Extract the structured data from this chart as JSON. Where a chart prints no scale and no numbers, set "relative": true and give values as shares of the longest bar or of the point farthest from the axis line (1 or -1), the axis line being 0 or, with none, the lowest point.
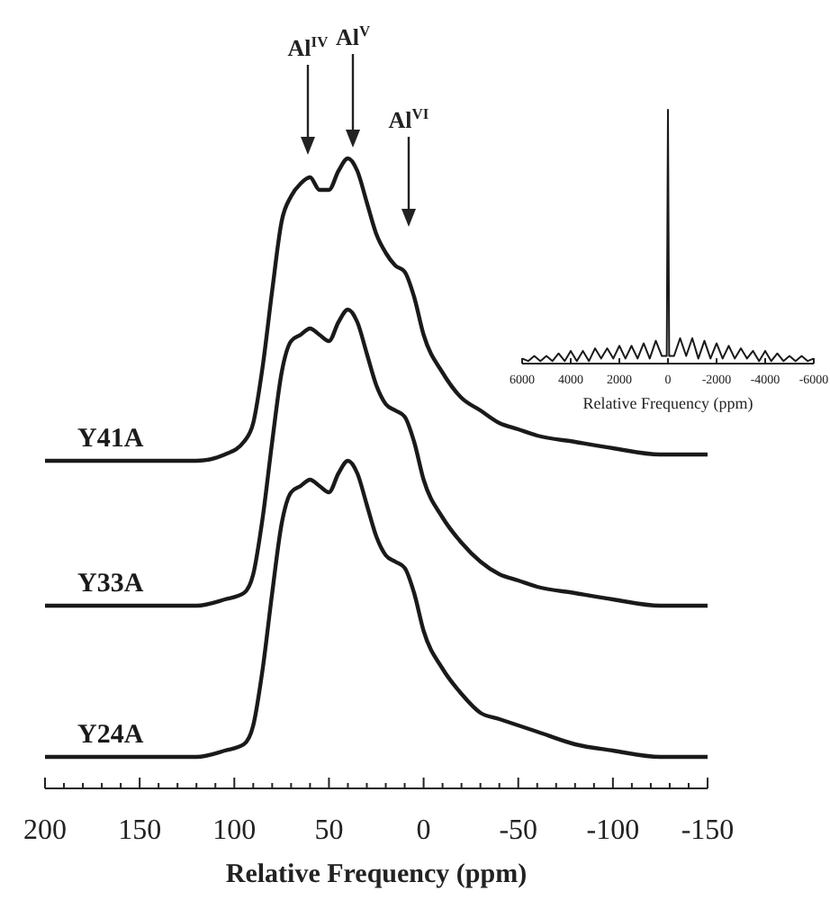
{
  "chart_data": [
    {
      "type": "line",
      "relative": true,
      "xlabel": "Relative Frequency (ppm)",
      "x": [
        200,
        150,
        120,
        105,
        95,
        90,
        85,
        80,
        75,
        70,
        65,
        60,
        55,
        50,
        45,
        40,
        35,
        30,
        25,
        20,
        15,
        10,
        5,
        0,
        -10,
        -20,
        -30,
        -40,
        -50,
        -60,
        -80,
        -100,
        -125,
        -150
      ],
      "xlim": [
        200,
        -150
      ],
      "xticks": [
        200,
        {
          "value": 190,
          "label": null
        },
        {
          "value": 180,
          "label": null
        },
        {
          "value": 170,
          "label": null
        },
        {
          "value": 160,
          "label": null
        },
        150,
        {
          "value": 140,
          "label": null
        },
        {
          "value": 130,
          "label": null
        },
        {
          "value": 120,
          "label": null
        },
        {
          "value": 110,
          "label": null
        },
        100,
        {
          "value": 90,
          "label": null
        },
        {
          "value": 80,
          "label": null
        },
        {
          "value": 70,
          "label": null
        },
        {
          "value": 60,
          "label": null
        },
        50,
        {
          "value": 40,
          "label": null
        },
        {
          "value": 30,
          "label": null
        },
        {
          "value": 20,
          "label": null
        },
        {
          "value": 10,
          "label": null
        },
        0,
        {
          "value": -10,
          "label": null
        },
        {
          "value": -20,
          "label": null
        },
        {
          "value": -30,
          "label": null
        },
        {
          "value": -40,
          "label": null
        },
        -50,
        {
          "value": -60,
          "label": null
        },
        {
          "value": -70,
          "label": null
        },
        {
          "value": -80,
          "label": null
        },
        {
          "value": -90,
          "label": null
        },
        -100,
        {
          "value": -110,
          "label": null
        },
        {
          "value": -120,
          "label": null
        },
        {
          "value": -130,
          "label": null
        },
        {
          "value": -140,
          "label": null
        },
        -150
      ],
      "series": [
        {
          "name": "Y41A",
          "color": "#1a1a1a",
          "values": [
            0.52,
            0.52,
            0.52,
            0.53,
            0.55,
            0.58,
            0.67,
            0.79,
            0.9,
            0.94,
            0.96,
            0.97,
            0.95,
            0.95,
            0.98,
            1.0,
            0.98,
            0.93,
            0.88,
            0.85,
            0.83,
            0.82,
            0.78,
            0.72,
            0.66,
            0.62,
            0.6,
            0.58,
            0.57,
            0.56,
            0.55,
            0.54,
            0.53,
            0.53
          ]
        },
        {
          "name": "Y33A",
          "color": "#1a1a1a",
          "values": [
            0.29,
            0.29,
            0.29,
            0.3,
            0.31,
            0.34,
            0.43,
            0.55,
            0.66,
            0.71,
            0.72,
            0.73,
            0.72,
            0.71,
            0.74,
            0.76,
            0.74,
            0.69,
            0.64,
            0.61,
            0.6,
            0.59,
            0.55,
            0.49,
            0.43,
            0.39,
            0.36,
            0.34,
            0.33,
            0.32,
            0.31,
            0.3,
            0.29,
            0.29
          ]
        },
        {
          "name": "Y24A",
          "color": "#1a1a1a",
          "values": [
            0.05,
            0.05,
            0.05,
            0.06,
            0.07,
            0.1,
            0.19,
            0.31,
            0.42,
            0.47,
            0.48,
            0.49,
            0.48,
            0.47,
            0.5,
            0.52,
            0.5,
            0.45,
            0.4,
            0.37,
            0.36,
            0.35,
            0.31,
            0.25,
            0.19,
            0.15,
            0.12,
            0.11,
            0.1,
            0.09,
            0.07,
            0.06,
            0.05,
            0.05
          ]
        }
      ],
      "annotations": [
        "Al$^{IV}$",
        "Al$^{V}$",
        "Al$^{VI}$"
      ]
    },
    {
      "type": "line",
      "relative": true,
      "xlabel": "Relative Frequency (ppm)",
      "xlim": [
        6000,
        -6000
      ],
      "xticks": [
        6000,
        4000,
        2000,
        0,
        -2000,
        -4000,
        -6000
      ],
      "x": [
        6000,
        5750,
        5500,
        5250,
        5000,
        4750,
        4500,
        4250,
        4000,
        3750,
        3500,
        3250,
        3000,
        2750,
        2500,
        2250,
        2000,
        1750,
        1500,
        1250,
        1000,
        750,
        500,
        250,
        50,
        0,
        -50,
        -250,
        -500,
        -750,
        -1000,
        -1250,
        -1500,
        -1750,
        -2000,
        -2250,
        -2500,
        -2750,
        -3000,
        -3250,
        -3500,
        -3750,
        -4000,
        -4250,
        -4500,
        -4750,
        -5000,
        -5250,
        -5500,
        -5750,
        -6000
      ],
      "series": [
        {
          "color": "#1a1a1a",
          "values": [
            0.02,
            0.01,
            0.03,
            0.01,
            0.03,
            0.01,
            0.04,
            0.01,
            0.05,
            0.01,
            0.05,
            0.01,
            0.06,
            0.02,
            0.06,
            0.02,
            0.07,
            0.02,
            0.07,
            0.02,
            0.08,
            0.02,
            0.09,
            0.03,
            0.03,
            1.0,
            0.03,
            0.03,
            0.1,
            0.03,
            0.1,
            0.02,
            0.09,
            0.02,
            0.08,
            0.02,
            0.07,
            0.02,
            0.06,
            0.02,
            0.05,
            0.01,
            0.05,
            0.01,
            0.04,
            0.01,
            0.03,
            0.01,
            0.03,
            0.01,
            0.02
          ]
        }
      ]
    }
  ]
}
